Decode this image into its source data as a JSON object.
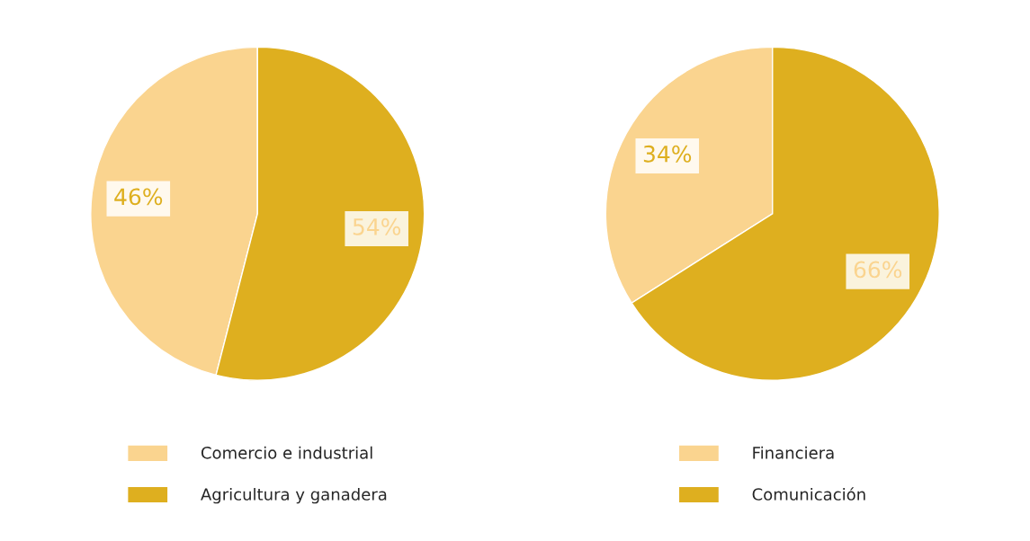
{
  "chart_data": [
    {
      "type": "pie",
      "categories": [
        "Comercio e industrial",
        "Agricultura y ganadera"
      ],
      "values": [
        46,
        54
      ],
      "colors": [
        "#fad48f",
        "#deaf1f"
      ],
      "value_labels": [
        "46%",
        "54%"
      ],
      "legend": "bottom"
    },
    {
      "type": "pie",
      "categories": [
        "Financiera",
        "Comunicación"
      ],
      "values": [
        34,
        66
      ],
      "colors": [
        "#fad48f",
        "#deaf1f"
      ],
      "value_labels": [
        "34%",
        "66%"
      ],
      "legend": "bottom"
    }
  ]
}
